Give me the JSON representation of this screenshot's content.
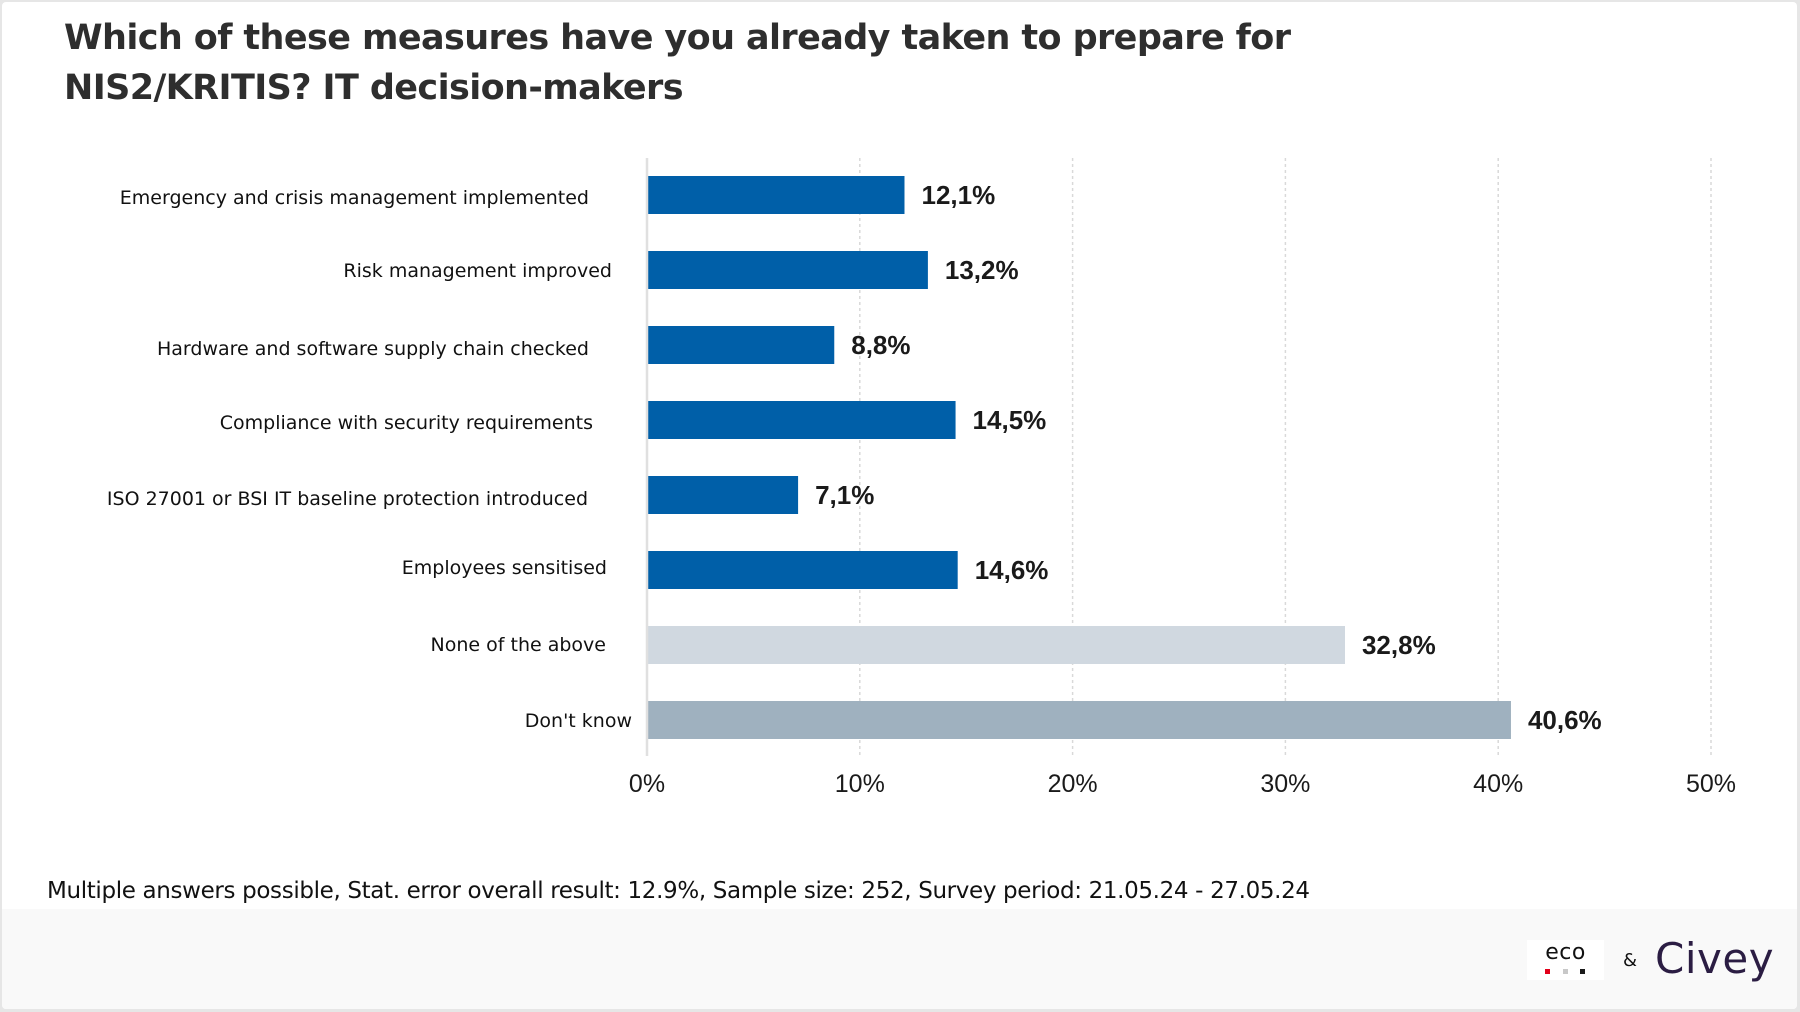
{
  "title": {
    "line1": "Which of these measures have you already taken to prepare for",
    "line2": "NIS2/KRITIS? IT decision-makers"
  },
  "chart_data": {
    "type": "bar",
    "orientation": "horizontal",
    "title": "Which of these measures have you already taken to prepare for NIS2/KRITIS? IT decision-makers",
    "xlabel": "",
    "ylabel": "",
    "xlim": [
      0,
      50
    ],
    "grid": true,
    "categories": [
      "Emergency and crisis management implemented",
      "Risk management improved",
      "Hardware and software supply chain checked",
      "Compliance with security requirements",
      "ISO 27001 or BSI IT baseline protection introduced",
      "Employees sensitised",
      "None of the above",
      "Don't know"
    ],
    "values": [
      12.1,
      13.2,
      8.8,
      14.5,
      7.1,
      14.6,
      32.8,
      40.6
    ],
    "value_labels": [
      "12,1%",
      "13,2%",
      "8,8%",
      "14,5%",
      "7,1%",
      "14,6%",
      "32,8%",
      "40,6%"
    ],
    "bar_colors": [
      "#005fa8",
      "#005fa8",
      "#005fa8",
      "#005fa8",
      "#005fa8",
      "#005fa8",
      "#d0d8e0",
      "#9fb1bf"
    ],
    "x_ticks": [
      0,
      10,
      20,
      30,
      40,
      50
    ],
    "x_tick_labels": [
      "0%",
      "10%",
      "20%",
      "30%",
      "40%",
      "50%"
    ]
  },
  "footnote": "Multiple answers possible, Stat. error overall result: 12.9%, Sample size: 252, Survey period: 21.05.24 - 27.05.24",
  "footer": {
    "eco_logo_text": "eco",
    "ampersand": "&",
    "civey_logo_text": "Civey",
    "eco_dot_colors": [
      "#e2001a",
      "#c8c8c8",
      "#1a1a1a"
    ]
  }
}
